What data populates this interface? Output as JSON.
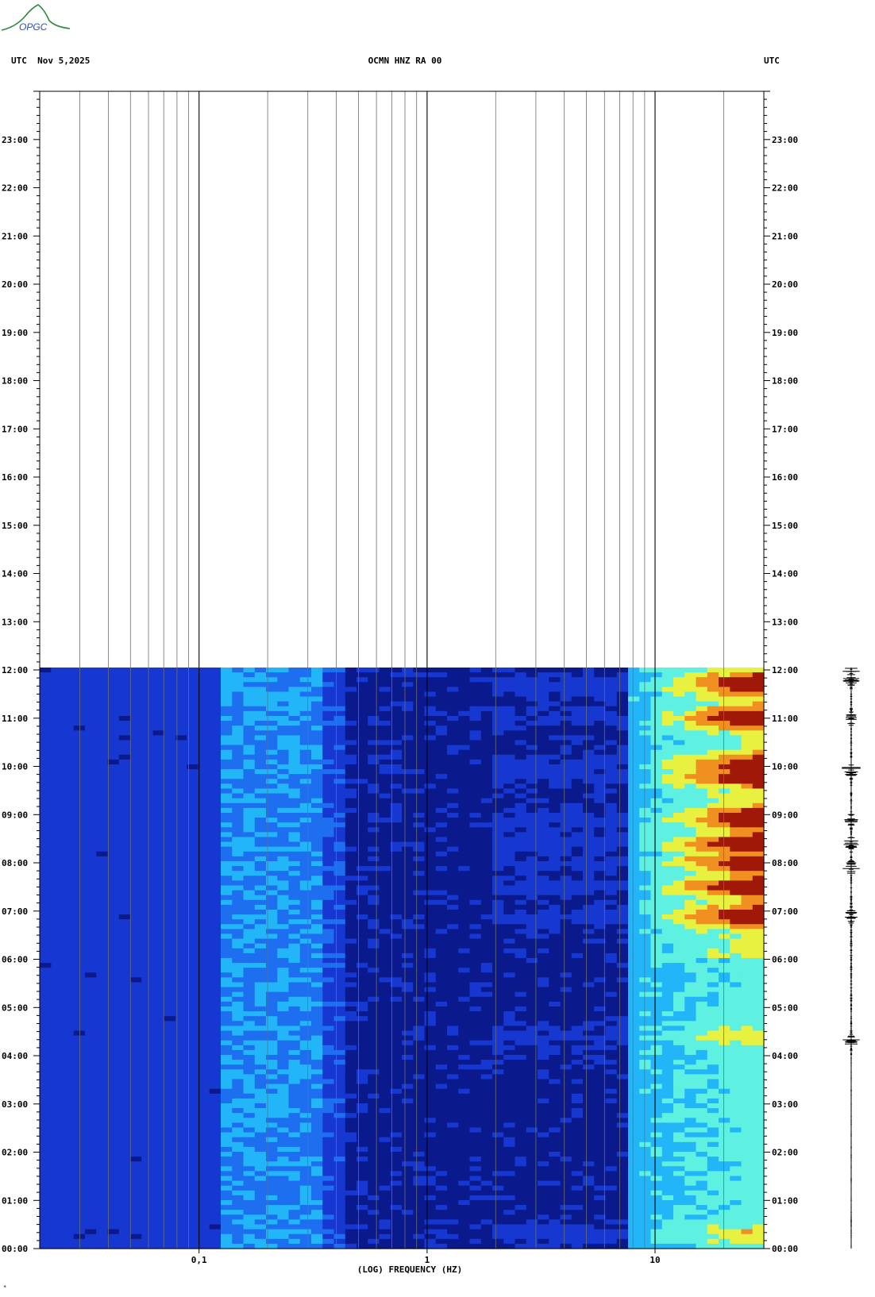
{
  "header": {
    "left": "UTC  Nov 5,2025",
    "center": "OCMN HNZ RA 00",
    "right": "UTC"
  },
  "logo": {
    "text": "OPGC",
    "color": "#2c8a3c",
    "text_color": "#2a4fb0"
  },
  "footnote": "*",
  "chart_data": {
    "type": "heatmap",
    "title": "OCMN HNZ RA 00",
    "date": "Nov 5,2025",
    "xlabel": "(LOG) FREQUENCY (HZ)",
    "xscale": "log",
    "xlim": [
      0.02,
      30
    ],
    "xticks": [
      {
        "value": 0.1,
        "label": "0,1"
      },
      {
        "value": 1,
        "label": "1"
      },
      {
        "value": 10,
        "label": "10"
      }
    ],
    "ylabel": "UTC",
    "ylim_hours": [
      0,
      24
    ],
    "ytick_labels": [
      "00:00",
      "01:00",
      "02:00",
      "03:00",
      "04:00",
      "05:00",
      "06:00",
      "07:00",
      "08:00",
      "09:00",
      "10:00",
      "11:00",
      "12:00",
      "13:00",
      "14:00",
      "15:00",
      "16:00",
      "17:00",
      "18:00",
      "19:00",
      "20:00",
      "21:00",
      "22:00",
      "23:00"
    ],
    "data_end_hour": 12.05,
    "colormap": [
      "#0a1a8c",
      "#1638d0",
      "#1e6ef0",
      "#22b6f8",
      "#5ef0e0",
      "#e8f040",
      "#f09020",
      "#a01808"
    ],
    "grid": true,
    "bands": [
      {
        "fmin": 0.02,
        "fmax": 0.12,
        "level": 0.12
      },
      {
        "fmin": 0.12,
        "fmax": 0.35,
        "level": 0.35
      },
      {
        "fmin": 0.35,
        "fmax": 0.45,
        "level": 0.2
      },
      {
        "fmin": 0.45,
        "fmax": 8,
        "level": 0.04
      },
      {
        "fmin": 8,
        "fmax": 30,
        "level": 0.45
      }
    ],
    "events_hours": [
      0.3,
      4.4,
      6.9,
      7.5,
      8.0,
      8.4,
      8.9,
      9.8,
      10.0,
      11.0,
      11.7
    ],
    "seismogram_bursts_hours": [
      4.3,
      6.9,
      7.9,
      8.4,
      8.9,
      9.9,
      10.0,
      11.0,
      11.8,
      12.0
    ]
  }
}
